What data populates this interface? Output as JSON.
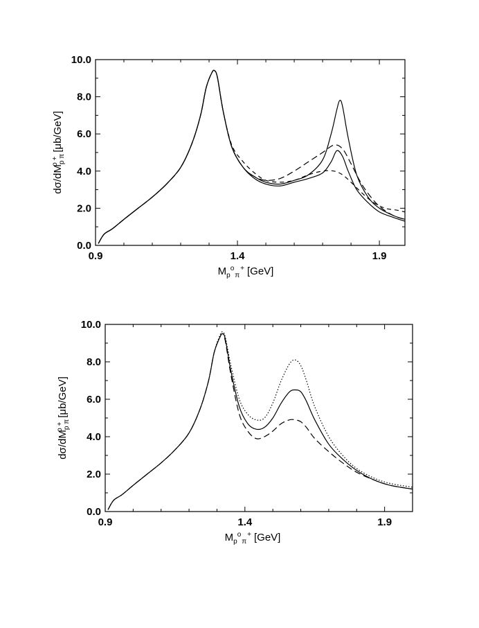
{
  "chart_data": [
    {
      "type": "line",
      "title": "",
      "xlabel": "M",
      "xlabel_sub": "p",
      "xlabel_sub2": "π",
      "xlabel_sup": "o",
      "xlabel_sup2": "+",
      "xlabel_unit": "[GeV]",
      "ylabel": "dσ/dM",
      "ylabel_sub": "p π",
      "ylabel_sup": "o +",
      "ylabel_unit": "[μb/GeV]",
      "xlim": [
        0.9,
        1.99
      ],
      "ylim": [
        0,
        10
      ],
      "x_ticks": [
        {
          "value": 0.9,
          "label": "0.9"
        },
        {
          "value": 1.4,
          "label": "1.4"
        },
        {
          "value": 1.9,
          "label": "1.9"
        }
      ],
      "y_ticks": [
        {
          "value": 0,
          "label": "0.0"
        },
        {
          "value": 2,
          "label": "2.0"
        },
        {
          "value": 4,
          "label": "4.0"
        },
        {
          "value": 6,
          "label": "6.0"
        },
        {
          "value": 8,
          "label": "8.0"
        },
        {
          "value": 10,
          "label": "10.0"
        }
      ],
      "series": [
        {
          "name": "solid-tall-peak",
          "style": "solid",
          "x": [
            0.91,
            0.93,
            0.96,
            1.0,
            1.05,
            1.1,
            1.15,
            1.2,
            1.24,
            1.27,
            1.29,
            1.31,
            1.32,
            1.33,
            1.35,
            1.38,
            1.42,
            1.46,
            1.5,
            1.55,
            1.6,
            1.65,
            1.7,
            1.73,
            1.75,
            1.76,
            1.77,
            1.79,
            1.82,
            1.86,
            1.9,
            1.95,
            1.99
          ],
          "y": [
            0.1,
            0.6,
            0.9,
            1.4,
            2.0,
            2.6,
            3.3,
            4.2,
            5.5,
            7.0,
            8.5,
            9.3,
            9.4,
            9.0,
            7.2,
            5.3,
            4.2,
            3.7,
            3.4,
            3.3,
            3.5,
            3.8,
            4.6,
            6.0,
            7.3,
            7.8,
            7.5,
            5.8,
            3.8,
            2.6,
            2.0,
            1.6,
            1.4
          ]
        },
        {
          "name": "solid-mid-peak",
          "style": "solid",
          "x": [
            0.91,
            0.93,
            0.96,
            1.0,
            1.05,
            1.1,
            1.15,
            1.2,
            1.24,
            1.27,
            1.29,
            1.31,
            1.32,
            1.33,
            1.35,
            1.38,
            1.42,
            1.46,
            1.5,
            1.55,
            1.6,
            1.65,
            1.7,
            1.73,
            1.75,
            1.77,
            1.79,
            1.82,
            1.86,
            1.9,
            1.95,
            1.99
          ],
          "y": [
            0.1,
            0.6,
            0.9,
            1.4,
            2.0,
            2.6,
            3.3,
            4.2,
            5.5,
            7.0,
            8.5,
            9.3,
            9.4,
            9.0,
            7.2,
            5.3,
            4.2,
            3.6,
            3.3,
            3.2,
            3.4,
            3.6,
            3.9,
            4.5,
            5.1,
            4.8,
            4.0,
            3.0,
            2.3,
            1.8,
            1.5,
            1.3
          ]
        },
        {
          "name": "dashed-long",
          "style": "dashed",
          "x": [
            0.91,
            0.93,
            0.96,
            1.0,
            1.05,
            1.1,
            1.15,
            1.2,
            1.24,
            1.27,
            1.29,
            1.31,
            1.32,
            1.33,
            1.35,
            1.38,
            1.42,
            1.46,
            1.5,
            1.55,
            1.6,
            1.65,
            1.7,
            1.74,
            1.77,
            1.8,
            1.83,
            1.86,
            1.9,
            1.95,
            1.99
          ],
          "y": [
            0.1,
            0.6,
            0.9,
            1.4,
            2.0,
            2.6,
            3.3,
            4.2,
            5.5,
            7.0,
            8.5,
            9.3,
            9.4,
            9.0,
            7.2,
            5.3,
            4.2,
            3.7,
            3.5,
            3.6,
            4.0,
            4.5,
            5.0,
            5.4,
            5.2,
            4.4,
            3.5,
            2.8,
            2.1,
            1.6,
            1.4
          ]
        },
        {
          "name": "dashed-short",
          "style": "shortdash",
          "x": [
            0.91,
            0.93,
            0.96,
            1.0,
            1.05,
            1.1,
            1.15,
            1.2,
            1.24,
            1.27,
            1.29,
            1.31,
            1.32,
            1.33,
            1.35,
            1.38,
            1.42,
            1.46,
            1.5,
            1.55,
            1.6,
            1.65,
            1.7,
            1.74,
            1.77,
            1.8,
            1.84,
            1.88,
            1.92,
            1.96,
            1.99
          ],
          "y": [
            0.1,
            0.6,
            0.9,
            1.4,
            2.0,
            2.6,
            3.3,
            4.2,
            5.5,
            7.0,
            8.5,
            9.3,
            9.4,
            9.0,
            7.2,
            5.4,
            4.5,
            3.9,
            3.5,
            3.4,
            3.5,
            3.8,
            4.0,
            4.0,
            3.8,
            3.4,
            2.8,
            2.3,
            2.0,
            1.9,
            1.8
          ]
        }
      ]
    },
    {
      "type": "line",
      "title": "",
      "xlabel": "M",
      "xlabel_sub": "p",
      "xlabel_sub2": "π",
      "xlabel_sup": "o",
      "xlabel_sup2": "+",
      "xlabel_unit": "[GeV]",
      "ylabel": "dσ/dM",
      "ylabel_sub": "p π",
      "ylabel_sup": "o +",
      "ylabel_unit": "[μb/GeV]",
      "xlim": [
        0.9,
        2.0
      ],
      "ylim": [
        0,
        10
      ],
      "x_ticks": [
        {
          "value": 0.9,
          "label": "0.9"
        },
        {
          "value": 1.4,
          "label": "1.4"
        },
        {
          "value": 1.9,
          "label": "1.9"
        }
      ],
      "y_ticks": [
        {
          "value": 0,
          "label": "0.0"
        },
        {
          "value": 2,
          "label": "2.0"
        },
        {
          "value": 4,
          "label": "4.0"
        },
        {
          "value": 6,
          "label": "6.0"
        },
        {
          "value": 8,
          "label": "8.0"
        },
        {
          "value": 10,
          "label": "10.0"
        }
      ],
      "series": [
        {
          "name": "dotted",
          "style": "dotted",
          "x": [
            0.91,
            0.93,
            0.96,
            1.0,
            1.05,
            1.1,
            1.15,
            1.2,
            1.24,
            1.27,
            1.29,
            1.31,
            1.32,
            1.33,
            1.35,
            1.38,
            1.41,
            1.44,
            1.47,
            1.5,
            1.53,
            1.56,
            1.58,
            1.6,
            1.62,
            1.65,
            1.7,
            1.75,
            1.8,
            1.86,
            1.92,
            2.0
          ],
          "y": [
            0.1,
            0.6,
            0.9,
            1.4,
            2.0,
            2.6,
            3.3,
            4.2,
            5.5,
            7.0,
            8.5,
            9.4,
            9.6,
            9.3,
            7.8,
            6.0,
            5.2,
            4.9,
            5.0,
            5.8,
            7.0,
            7.9,
            8.1,
            7.8,
            7.0,
            5.6,
            4.0,
            3.0,
            2.3,
            1.8,
            1.5,
            1.3
          ]
        },
        {
          "name": "solid",
          "style": "solid",
          "x": [
            0.91,
            0.93,
            0.96,
            1.0,
            1.05,
            1.1,
            1.15,
            1.2,
            1.24,
            1.27,
            1.29,
            1.31,
            1.32,
            1.33,
            1.35,
            1.38,
            1.41,
            1.44,
            1.47,
            1.5,
            1.53,
            1.56,
            1.58,
            1.6,
            1.62,
            1.65,
            1.7,
            1.75,
            1.8,
            1.86,
            1.92,
            2.0
          ],
          "y": [
            0.1,
            0.6,
            0.9,
            1.4,
            2.0,
            2.6,
            3.3,
            4.2,
            5.5,
            7.0,
            8.5,
            9.3,
            9.5,
            9.2,
            7.5,
            5.6,
            4.7,
            4.4,
            4.5,
            5.0,
            5.8,
            6.4,
            6.5,
            6.4,
            5.9,
            4.9,
            3.6,
            2.8,
            2.2,
            1.7,
            1.4,
            1.2
          ]
        },
        {
          "name": "dashed",
          "style": "dashed",
          "x": [
            0.91,
            0.93,
            0.96,
            1.0,
            1.05,
            1.1,
            1.15,
            1.2,
            1.24,
            1.27,
            1.29,
            1.31,
            1.32,
            1.33,
            1.35,
            1.38,
            1.41,
            1.44,
            1.47,
            1.5,
            1.53,
            1.56,
            1.58,
            1.6,
            1.62,
            1.65,
            1.7,
            1.75,
            1.8,
            1.86,
            1.92,
            2.0
          ],
          "y": [
            0.1,
            0.6,
            0.9,
            1.4,
            2.0,
            2.6,
            3.3,
            4.2,
            5.5,
            7.0,
            8.5,
            9.3,
            9.5,
            9.1,
            7.3,
            5.2,
            4.3,
            3.9,
            4.0,
            4.3,
            4.7,
            4.9,
            4.9,
            4.8,
            4.5,
            3.9,
            3.2,
            2.6,
            2.1,
            1.7,
            1.4,
            1.2
          ]
        }
      ]
    }
  ]
}
